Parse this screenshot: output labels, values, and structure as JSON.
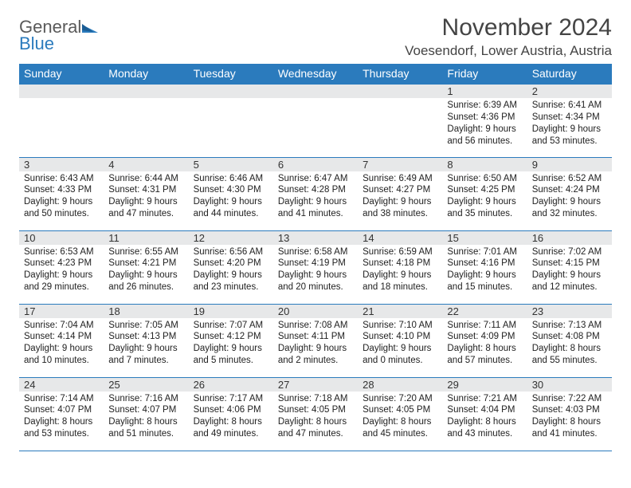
{
  "brand": {
    "line1": "General",
    "line2": "Blue"
  },
  "title": "November 2024",
  "location": "Voesendorf, Lower Austria, Austria",
  "colors": {
    "header_bg": "#2b7bbd",
    "header_text": "#ffffff",
    "daynum_bg": "#e7e8e9",
    "border": "#2b7bbd",
    "text": "#222222"
  },
  "day_headers": [
    "Sunday",
    "Monday",
    "Tuesday",
    "Wednesday",
    "Thursday",
    "Friday",
    "Saturday"
  ],
  "weeks": [
    [
      null,
      null,
      null,
      null,
      null,
      {
        "n": "1",
        "sunrise": "6:39 AM",
        "sunset": "4:36 PM",
        "daylight": "9 hours and 56 minutes."
      },
      {
        "n": "2",
        "sunrise": "6:41 AM",
        "sunset": "4:34 PM",
        "daylight": "9 hours and 53 minutes."
      }
    ],
    [
      {
        "n": "3",
        "sunrise": "6:43 AM",
        "sunset": "4:33 PM",
        "daylight": "9 hours and 50 minutes."
      },
      {
        "n": "4",
        "sunrise": "6:44 AM",
        "sunset": "4:31 PM",
        "daylight": "9 hours and 47 minutes."
      },
      {
        "n": "5",
        "sunrise": "6:46 AM",
        "sunset": "4:30 PM",
        "daylight": "9 hours and 44 minutes."
      },
      {
        "n": "6",
        "sunrise": "6:47 AM",
        "sunset": "4:28 PM",
        "daylight": "9 hours and 41 minutes."
      },
      {
        "n": "7",
        "sunrise": "6:49 AM",
        "sunset": "4:27 PM",
        "daylight": "9 hours and 38 minutes."
      },
      {
        "n": "8",
        "sunrise": "6:50 AM",
        "sunset": "4:25 PM",
        "daylight": "9 hours and 35 minutes."
      },
      {
        "n": "9",
        "sunrise": "6:52 AM",
        "sunset": "4:24 PM",
        "daylight": "9 hours and 32 minutes."
      }
    ],
    [
      {
        "n": "10",
        "sunrise": "6:53 AM",
        "sunset": "4:23 PM",
        "daylight": "9 hours and 29 minutes."
      },
      {
        "n": "11",
        "sunrise": "6:55 AM",
        "sunset": "4:21 PM",
        "daylight": "9 hours and 26 minutes."
      },
      {
        "n": "12",
        "sunrise": "6:56 AM",
        "sunset": "4:20 PM",
        "daylight": "9 hours and 23 minutes."
      },
      {
        "n": "13",
        "sunrise": "6:58 AM",
        "sunset": "4:19 PM",
        "daylight": "9 hours and 20 minutes."
      },
      {
        "n": "14",
        "sunrise": "6:59 AM",
        "sunset": "4:18 PM",
        "daylight": "9 hours and 18 minutes."
      },
      {
        "n": "15",
        "sunrise": "7:01 AM",
        "sunset": "4:16 PM",
        "daylight": "9 hours and 15 minutes."
      },
      {
        "n": "16",
        "sunrise": "7:02 AM",
        "sunset": "4:15 PM",
        "daylight": "9 hours and 12 minutes."
      }
    ],
    [
      {
        "n": "17",
        "sunrise": "7:04 AM",
        "sunset": "4:14 PM",
        "daylight": "9 hours and 10 minutes."
      },
      {
        "n": "18",
        "sunrise": "7:05 AM",
        "sunset": "4:13 PM",
        "daylight": "9 hours and 7 minutes."
      },
      {
        "n": "19",
        "sunrise": "7:07 AM",
        "sunset": "4:12 PM",
        "daylight": "9 hours and 5 minutes."
      },
      {
        "n": "20",
        "sunrise": "7:08 AM",
        "sunset": "4:11 PM",
        "daylight": "9 hours and 2 minutes."
      },
      {
        "n": "21",
        "sunrise": "7:10 AM",
        "sunset": "4:10 PM",
        "daylight": "9 hours and 0 minutes."
      },
      {
        "n": "22",
        "sunrise": "7:11 AM",
        "sunset": "4:09 PM",
        "daylight": "8 hours and 57 minutes."
      },
      {
        "n": "23",
        "sunrise": "7:13 AM",
        "sunset": "4:08 PM",
        "daylight": "8 hours and 55 minutes."
      }
    ],
    [
      {
        "n": "24",
        "sunrise": "7:14 AM",
        "sunset": "4:07 PM",
        "daylight": "8 hours and 53 minutes."
      },
      {
        "n": "25",
        "sunrise": "7:16 AM",
        "sunset": "4:07 PM",
        "daylight": "8 hours and 51 minutes."
      },
      {
        "n": "26",
        "sunrise": "7:17 AM",
        "sunset": "4:06 PM",
        "daylight": "8 hours and 49 minutes."
      },
      {
        "n": "27",
        "sunrise": "7:18 AM",
        "sunset": "4:05 PM",
        "daylight": "8 hours and 47 minutes."
      },
      {
        "n": "28",
        "sunrise": "7:20 AM",
        "sunset": "4:05 PM",
        "daylight": "8 hours and 45 minutes."
      },
      {
        "n": "29",
        "sunrise": "7:21 AM",
        "sunset": "4:04 PM",
        "daylight": "8 hours and 43 minutes."
      },
      {
        "n": "30",
        "sunrise": "7:22 AM",
        "sunset": "4:03 PM",
        "daylight": "8 hours and 41 minutes."
      }
    ]
  ],
  "labels": {
    "sunrise_prefix": "Sunrise: ",
    "sunset_prefix": "Sunset: ",
    "daylight_prefix": "Daylight: "
  }
}
